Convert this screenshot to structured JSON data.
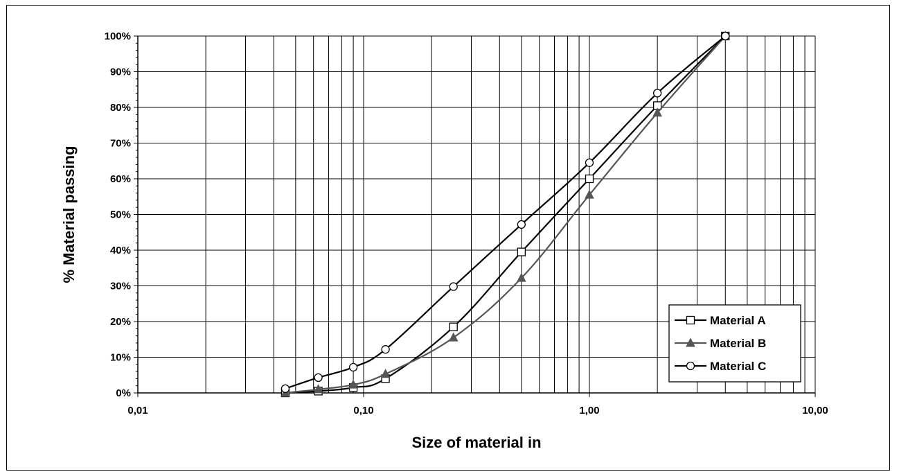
{
  "chart_data": {
    "type": "line",
    "title": "",
    "xlabel": "Size of material in",
    "ylabel": "% Material passing",
    "x_scale": "log",
    "xlim": [
      0.01,
      10
    ],
    "ylim": [
      0,
      100
    ],
    "x_ticks": [
      {
        "value": 0.01,
        "label": "0,01"
      },
      {
        "value": 0.1,
        "label": "0,10"
      },
      {
        "value": 1,
        "label": "1,00"
      },
      {
        "value": 10,
        "label": "10,00"
      }
    ],
    "y_ticks": [
      {
        "value": 0,
        "label": "0%"
      },
      {
        "value": 10,
        "label": "10%"
      },
      {
        "value": 20,
        "label": "20%"
      },
      {
        "value": 30,
        "label": "30%"
      },
      {
        "value": 40,
        "label": "40%"
      },
      {
        "value": 50,
        "label": "50%"
      },
      {
        "value": 60,
        "label": "60%"
      },
      {
        "value": 70,
        "label": "70%"
      },
      {
        "value": 80,
        "label": "80%"
      },
      {
        "value": 90,
        "label": "90%"
      },
      {
        "value": 100,
        "label": "100%"
      }
    ],
    "grid": true,
    "legend_position": "bottom-right",
    "series": [
      {
        "name": "Material A",
        "marker": "square",
        "color": "#000000",
        "points": [
          [
            0.045,
            0
          ],
          [
            0.063,
            0.5
          ],
          [
            0.09,
            1.5
          ],
          [
            0.125,
            4
          ],
          [
            0.25,
            18.5
          ],
          [
            0.5,
            39.5
          ],
          [
            1,
            60
          ],
          [
            2,
            80.5
          ],
          [
            4,
            100
          ]
        ]
      },
      {
        "name": "Material B",
        "marker": "triangle",
        "color": "#555555",
        "points": [
          [
            0.045,
            0
          ],
          [
            0.063,
            1
          ],
          [
            0.09,
            2.3
          ],
          [
            0.125,
            5.3
          ],
          [
            0.25,
            15.5
          ],
          [
            0.5,
            32.2
          ],
          [
            1,
            55.5
          ],
          [
            2,
            78.5
          ],
          [
            4,
            100
          ]
        ]
      },
      {
        "name": "Material C",
        "marker": "circle",
        "color": "#000000",
        "points": [
          [
            0.045,
            1.2
          ],
          [
            0.063,
            4.3
          ],
          [
            0.09,
            7.2
          ],
          [
            0.125,
            12.2
          ],
          [
            0.25,
            29.8
          ],
          [
            0.5,
            47.2
          ],
          [
            1,
            64.5
          ],
          [
            2,
            84
          ],
          [
            4,
            100
          ]
        ]
      }
    ]
  }
}
